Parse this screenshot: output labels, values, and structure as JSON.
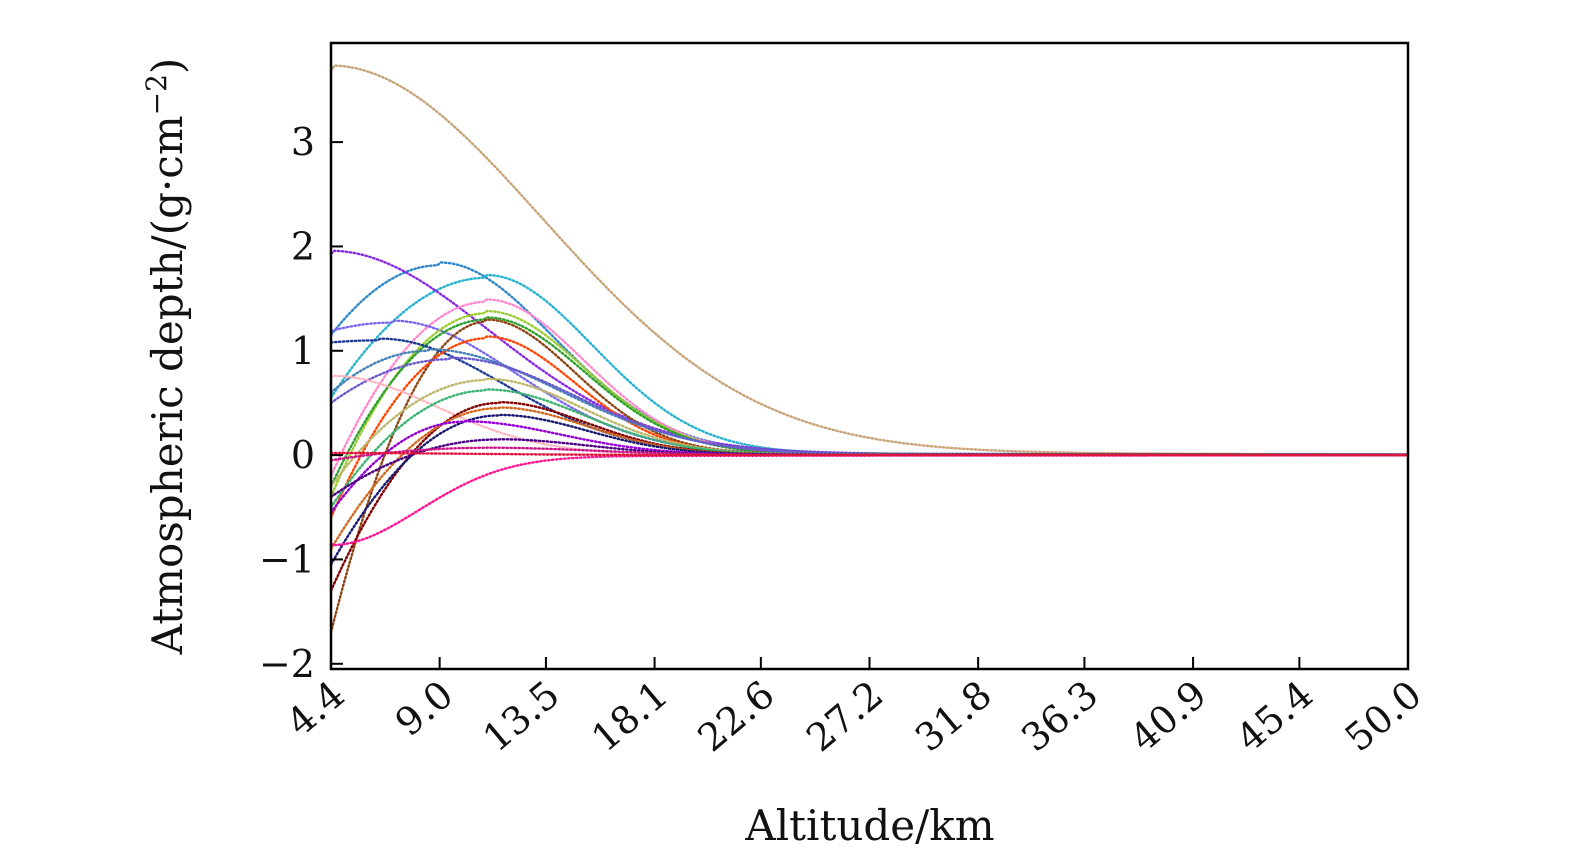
{
  "chart_data": {
    "type": "line",
    "title": "",
    "xlabel": "Altitude/km",
    "ylabel": "Atmospheric depth/(g·cm",
    "ylabel_exp": "−2",
    "ylabel_close": ")",
    "xlim": [
      4.4,
      50.0
    ],
    "ylim": [
      -2.05,
      3.95
    ],
    "x_ticks": [
      "4.4",
      "9.0",
      "13.5",
      "18.1",
      "22.6",
      "27.2",
      "31.8",
      "36.3",
      "40.9",
      "45.4",
      "50.0"
    ],
    "y_ticks": [
      "−2",
      "−1",
      "0",
      "1",
      "2",
      "3"
    ],
    "y_tick_values": [
      -2,
      -1,
      0,
      1,
      2,
      3
    ],
    "grid": false,
    "legend": "none",
    "curve_model": "y = A*exp(-((x-xp)/w)^2) for x<xp; y = A*exp(-((x-xp)/w2)^2) for x>=xp; plus a linear offset near low altitude",
    "series": [
      {
        "color": "#c8a47a",
        "y_at_4_4": 3.68,
        "peak_x": 4.4,
        "peak_y": 3.68,
        "decay_km": 12.0
      },
      {
        "color": "#2f86c8",
        "y_at_4_4": 1.15,
        "peak_x": 9.0,
        "peak_y": 1.82,
        "decay_km": 6.5
      },
      {
        "color": "#26b2d0",
        "y_at_4_4": 0.55,
        "peak_x": 11.0,
        "peak_y": 1.7,
        "decay_km": 6.0
      },
      {
        "color": "#8a2be2",
        "y_at_4_4": 1.93,
        "peak_x": 4.4,
        "peak_y": 1.93,
        "decay_km": 9.0
      },
      {
        "color": "#ff88cc",
        "y_at_4_4": -0.2,
        "peak_x": 11.0,
        "peak_y": 1.47,
        "decay_km": 5.5
      },
      {
        "color": "#7b68ee",
        "y_at_4_4": 1.19,
        "peak_x": 7.0,
        "peak_y": 1.27,
        "decay_km": 7.0
      },
      {
        "color": "#9acd32",
        "y_at_4_4": -0.4,
        "peak_x": 11.0,
        "peak_y": 1.36,
        "decay_km": 5.5
      },
      {
        "color": "#2ca02c",
        "y_at_4_4": -0.3,
        "peak_x": 11.0,
        "peak_y": 1.3,
        "decay_km": 5.5
      },
      {
        "color": "#8b4513",
        "y_at_4_4": -1.7,
        "peak_x": 11.0,
        "peak_y": 1.28,
        "decay_km": 5.0
      },
      {
        "color": "#1f3a93",
        "y_at_4_4": 1.08,
        "peak_x": 6.5,
        "peak_y": 1.1,
        "decay_km": 7.0
      },
      {
        "color": "#ff4500",
        "y_at_4_4": -0.6,
        "peak_x": 11.0,
        "peak_y": 1.12,
        "decay_km": 5.0
      },
      {
        "color": "#4682b4",
        "y_at_4_4": 0.6,
        "peak_x": 8.5,
        "peak_y": 1.0,
        "decay_km": 7.5
      },
      {
        "color": "#6a5acd",
        "y_at_4_4": 0.5,
        "peak_x": 9.5,
        "peak_y": 0.92,
        "decay_km": 7.0
      },
      {
        "color": "#ffb6c1",
        "y_at_4_4": 0.75,
        "peak_x": 4.4,
        "peak_y": 0.75,
        "decay_km": 6.0
      },
      {
        "color": "#bdb76b",
        "y_at_4_4": -0.3,
        "peak_x": 11.0,
        "peak_y": 0.72,
        "decay_km": 5.5
      },
      {
        "color": "#3cb371",
        "y_at_4_4": -0.5,
        "peak_x": 11.0,
        "peak_y": 0.62,
        "decay_km": 5.5
      },
      {
        "color": "#800000",
        "y_at_4_4": -1.3,
        "peak_x": 11.5,
        "peak_y": 0.5,
        "decay_km": 5.0
      },
      {
        "color": "#d2691e",
        "y_at_4_4": -0.9,
        "peak_x": 11.5,
        "peak_y": 0.45,
        "decay_km": 5.0
      },
      {
        "color": "#191970",
        "y_at_4_4": -1.05,
        "peak_x": 11.5,
        "peak_y": 0.38,
        "decay_km": 5.0
      },
      {
        "color": "#9400d3",
        "y_at_4_4": -0.55,
        "peak_x": 10.0,
        "peak_y": 0.32,
        "decay_km": 5.5
      },
      {
        "color": "#4b0082",
        "y_at_4_4": -0.4,
        "peak_x": 11.5,
        "peak_y": 0.15,
        "decay_km": 5.0
      },
      {
        "color": "#c71585",
        "y_at_4_4": -0.05,
        "peak_x": 11.0,
        "peak_y": 0.07,
        "decay_km": 6.0
      },
      {
        "color": "#ff1493",
        "y_at_4_4": -0.85,
        "peak_x": 4.4,
        "peak_y": -0.85,
        "decay_km": 5.0
      },
      {
        "color": "#dc143c",
        "y_at_4_4": 0.02,
        "peak_x": 4.4,
        "peak_y": 0.02,
        "decay_km": 8.0
      }
    ]
  }
}
